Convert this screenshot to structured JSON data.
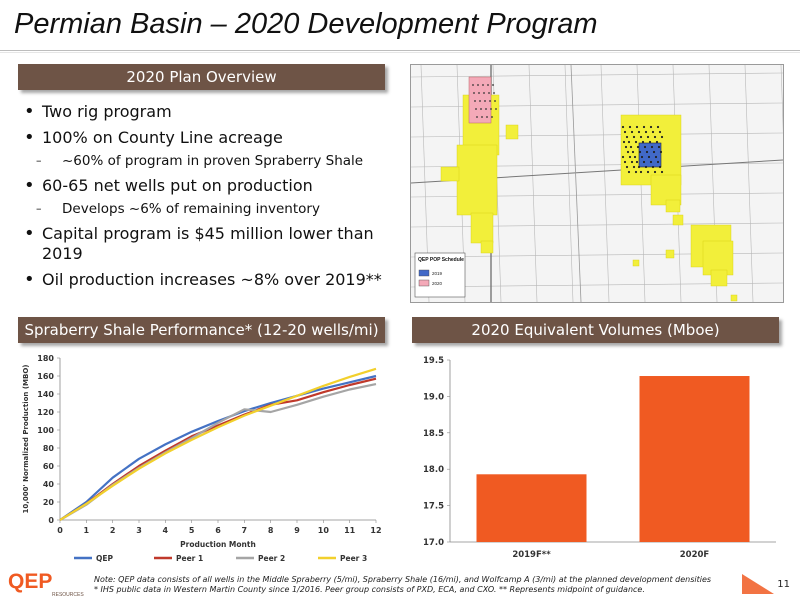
{
  "title": "Permian Basin – 2020 Development Program",
  "plan_overview": {
    "header": "2020 Plan Overview",
    "bullets": [
      {
        "level": 1,
        "text": "Two rig program"
      },
      {
        "level": 1,
        "text": "100% on County Line acreage"
      },
      {
        "level": 2,
        "text": "~60% of program in proven Spraberry Shale"
      },
      {
        "level": 1,
        "text": "60-65 net wells put on production"
      },
      {
        "level": 2,
        "text": "Develops ~6% of remaining inventory"
      },
      {
        "level": 1,
        "text": "Capital program is $45 million lower than 2019"
      },
      {
        "level": 1,
        "text": "Oil production increases ~8% over 2019**"
      }
    ]
  },
  "map": {
    "legend_title": "QEP POP Schedule",
    "legend_items": [
      "2019",
      "2020"
    ],
    "colors": {
      "acreage": "#f2ef3a",
      "wells_2019": "#4169c8",
      "wells_2020": "#f4a9b8",
      "background": "#f4f4f4"
    }
  },
  "performance": {
    "header": "Spraberry Shale Performance* (12-20 wells/mi)",
    "chart_data": {
      "type": "line",
      "title": "",
      "xlabel": "Production Month",
      "ylabel": "10,000' Normalized Production (MBO)",
      "x": [
        0,
        1,
        2,
        3,
        4,
        5,
        6,
        7,
        8,
        9,
        10,
        11,
        12
      ],
      "xlim": [
        0,
        12
      ],
      "ylim": [
        0,
        180
      ],
      "yticks": [
        0,
        20,
        40,
        60,
        80,
        100,
        120,
        140,
        160,
        180
      ],
      "grid": false,
      "legend_position": "bottom",
      "series": [
        {
          "name": "QEP",
          "color": "#4472c4",
          "values": [
            0,
            20,
            47,
            68,
            84,
            98,
            110,
            121,
            130,
            138,
            146,
            153,
            160
          ]
        },
        {
          "name": "Peer 1",
          "color": "#c0392b",
          "values": [
            0,
            18,
            40,
            60,
            77,
            93,
            105,
            117,
            128,
            133,
            142,
            150,
            157
          ]
        },
        {
          "name": "Peer 2",
          "color": "#a5a5a5",
          "values": [
            0,
            17,
            39,
            58,
            75,
            91,
            108,
            123,
            120,
            128,
            137,
            145,
            151
          ]
        },
        {
          "name": "Peer 3",
          "color": "#f2d02c",
          "values": [
            0,
            18,
            38,
            57,
            74,
            89,
            103,
            116,
            127,
            138,
            149,
            159,
            168
          ]
        }
      ]
    }
  },
  "volumes": {
    "header": "2020 Equivalent Volumes (Mboe)",
    "chart_data": {
      "type": "bar",
      "title": "",
      "categories": [
        "2019F**",
        "2020F"
      ],
      "values": [
        17.93,
        19.28
      ],
      "ylim": [
        17.0,
        19.5
      ],
      "yticks": [
        "17.0",
        "17.5",
        "18.0",
        "18.5",
        "19.0",
        "19.5"
      ],
      "ytick_values": [
        17.0,
        17.5,
        18.0,
        18.5,
        19.0,
        19.5
      ],
      "grid": false,
      "bar_color": "#f05a22"
    }
  },
  "footer": {
    "note_line1": "Note: QEP data consists of all wells in the Middle Spraberry (5/mi), Spraberry Shale (16/mi), and Wolfcamp A (3/mi) at the planned development densities",
    "note_line2": "* IHS public data in Western Martin County since 1/2016.  Peer group consists of PXD, ECA, and CXO.  ** Represents midpoint of guidance.",
    "logo_text": "QEP",
    "logo_sub": "RESOURCES",
    "page_number": "11"
  }
}
